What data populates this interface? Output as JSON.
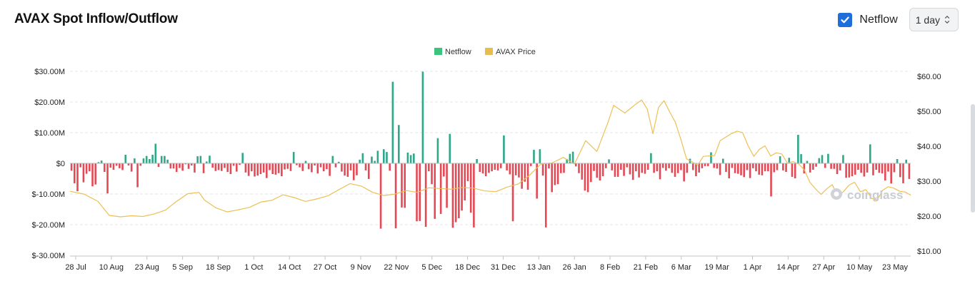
{
  "header": {
    "title": "AVAX Spot Inflow/Outflow",
    "checkbox_label": "Netflow",
    "checkbox_checked": true,
    "interval": "1 day"
  },
  "watermark": "coinglass",
  "colors": {
    "positive": "#2fa889",
    "negative": "#e34a55",
    "price": "#ecc054",
    "accent": "#1e6fd9"
  },
  "chart_data": {
    "type": "bar",
    "grid": true,
    "legend_placement": "top-center",
    "legend": [
      {
        "name": "Netflow",
        "color": "#3cc47c"
      },
      {
        "name": "AVAX Price",
        "color": "#e9bc4f"
      }
    ],
    "x_tick_labels": [
      "28 Jul",
      "10 Aug",
      "23 Aug",
      "5 Sep",
      "18 Sep",
      "1 Oct",
      "14 Oct",
      "27 Oct",
      "9 Nov",
      "22 Nov",
      "5 Dec",
      "18 Dec",
      "31 Dec",
      "13 Jan",
      "26 Jan",
      "8 Feb",
      "21 Feb",
      "6 Mar",
      "19 Mar",
      "1 Apr",
      "14 Apr",
      "27 Apr",
      "10 May",
      "23 May"
    ],
    "y_left": {
      "ticks": [
        "$30.00M",
        "$20.00M",
        "$10.00M",
        "$0",
        "$-10.00M",
        "$-20.00M",
        "$-30.00M"
      ],
      "range": [
        -30,
        30
      ],
      "unit": "M USD"
    },
    "y_right": {
      "ticks": [
        "$60.00",
        "$50.00",
        "$40.00",
        "$30.00",
        "$20.00",
        "$10.00"
      ],
      "range": [
        10,
        60
      ],
      "unit": "USD"
    },
    "series": [
      {
        "name": "Netflow",
        "axis": "left",
        "values": [
          -2.4,
          -6.5,
          -9.1,
          -1.3,
          -6.2,
          -3.4,
          -2.6,
          -7.5,
          -6.9,
          0.4,
          0.9,
          -2.8,
          -9.8,
          -1.4,
          -2.1,
          -0.8,
          -1.6,
          -2.2,
          2.8,
          -0.7,
          -2.7,
          1.6,
          -7.8,
          -0.8,
          1.6,
          2.4,
          1.4,
          2.8,
          6.4,
          -1.2,
          2.4,
          2.4,
          1.2,
          -1.7,
          -1.7,
          -2.8,
          -1.5,
          -2.4,
          -0.3,
          -1.8,
          -0.7,
          -3.0,
          2.3,
          2.4,
          -3.2,
          0.6,
          2.5,
          -1.4,
          -2.5,
          -2.2,
          -2.5,
          -1.5,
          -2.8,
          -3.5,
          -0.8,
          -2.7,
          -0.5,
          3.4,
          -3.0,
          -4.1,
          -2.6,
          -4.3,
          -4.0,
          -3.5,
          -3.0,
          -4.8,
          -2.2,
          -3.5,
          -3.7,
          -3.2,
          -4.2,
          -2.0,
          -1.8,
          -2.5,
          3.7,
          -0.6,
          -1.3,
          -2.5,
          0.8,
          -1.9,
          -2.9,
          -0.7,
          -3.3,
          -1.3,
          -2.6,
          -1.9,
          -4.1,
          2.4,
          -1.3,
          0.5,
          -2.7,
          -4.0,
          -4.4,
          -2.3,
          -5.5,
          -3.9,
          1.2,
          3.3,
          -2.3,
          -5.1,
          2.2,
          0.8,
          4.1,
          -21.3,
          4.6,
          3.7,
          -2.4,
          26.6,
          -21.2,
          12.5,
          -14.4,
          -14.5,
          3.5,
          2.7,
          3.2,
          -18.9,
          -18.8,
          29.9,
          -20.7,
          -2.6,
          -6.8,
          -18.1,
          8.2,
          -16.5,
          -4.3,
          -14.5,
          9.6,
          -21.0,
          -19.2,
          -17.9,
          -15.4,
          -12.1,
          -5.8,
          -16.1,
          -20.9,
          1.4,
          -2.8,
          -3.3,
          -4.2,
          -3.1,
          -2.6,
          -2.1,
          -2.3,
          -1.6,
          9.1,
          -2.3,
          -3.6,
          -18.9,
          -3.9,
          -4.6,
          -8.3,
          -6.0,
          -8.6,
          -0.9,
          4.4,
          -11.5,
          4.6,
          -4.0,
          -20.9,
          -1.7,
          -9.4,
          -7.1,
          -6.8,
          -3.2,
          -3.1,
          1.4,
          3.1,
          3.8,
          -1.0,
          -3.2,
          -5.3,
          -8.9,
          -9.4,
          -6.1,
          -2.5,
          -4.7,
          -5.6,
          -4.2,
          -1.6,
          1.3,
          -2.3,
          -4.4,
          -4.4,
          -2.1,
          -4.1,
          -1.3,
          -3.6,
          -5.4,
          -2.6,
          -4.6,
          -3.1,
          -3.4,
          -2.1,
          3.3,
          -3.1,
          -2.6,
          -5.2,
          -1.5,
          -2.4,
          -1.6,
          -3.1,
          -4.4,
          -3.2,
          -2.2,
          -5.9,
          -3.1,
          1.5,
          -2.2,
          -4.2,
          -3.0,
          -1.6,
          -0.9,
          -0.9,
          3.6,
          -1.5,
          -1.7,
          -3.8,
          1.5,
          -2.8,
          -4.9,
          -1.5,
          -3.2,
          -3.4,
          -3.9,
          -4.5,
          -2.2,
          -4.8,
          -1.6,
          -2.6,
          -3.7,
          -3.9,
          -2.6,
          -2.6,
          -10.8,
          -2.9,
          -2.2,
          2.3,
          -2.3,
          -2.8,
          1.8,
          -4.4,
          -4.9,
          9.3,
          3.0,
          -3.3,
          0.8,
          -3.0,
          -2.1,
          -1.1,
          1.7,
          2.7,
          -1.5,
          3.1,
          -1.8,
          -1.8,
          -3.5,
          -2.3,
          2.7,
          -4.7,
          -4.6,
          -4.2,
          -3.7,
          -2.1,
          -3.1,
          -4.3,
          -3.0,
          6.2,
          -3.9,
          -2.1,
          -3.1,
          -3.3,
          -5.6,
          -2.7,
          -6.6,
          -2.9,
          1.4,
          -4.5,
          -6.5,
          1.2,
          -5.1
        ]
      },
      {
        "name": "AVAX Price",
        "axis": "right",
        "x_range": [
          0,
          300
        ],
        "points": [
          [
            0,
            27.1
          ],
          [
            5,
            26.3
          ],
          [
            10,
            24.2
          ],
          [
            14,
            20.2
          ],
          [
            18,
            19.8
          ],
          [
            22,
            20.1
          ],
          [
            26,
            19.9
          ],
          [
            30,
            20.6
          ],
          [
            34,
            21.7
          ],
          [
            38,
            24.2
          ],
          [
            42,
            26.4
          ],
          [
            46,
            26.8
          ],
          [
            48,
            24.6
          ],
          [
            52,
            22.4
          ],
          [
            56,
            21.2
          ],
          [
            60,
            21.8
          ],
          [
            64,
            22.5
          ],
          [
            68,
            24.0
          ],
          [
            72,
            24.5
          ],
          [
            76,
            26.1
          ],
          [
            80,
            25.3
          ],
          [
            84,
            24.2
          ],
          [
            88,
            24.9
          ],
          [
            92,
            25.8
          ],
          [
            96,
            27.6
          ],
          [
            100,
            29.3
          ],
          [
            104,
            28.6
          ],
          [
            108,
            26.8
          ],
          [
            112,
            25.9
          ],
          [
            116,
            26.3
          ],
          [
            120,
            27.3
          ],
          [
            124,
            26.8
          ],
          [
            128,
            28.1
          ],
          [
            132,
            27.9
          ],
          [
            136,
            27.7
          ],
          [
            140,
            28.2
          ],
          [
            144,
            28.0
          ],
          [
            148,
            27.2
          ],
          [
            152,
            27.0
          ],
          [
            156,
            28.3
          ],
          [
            160,
            29.2
          ],
          [
            164,
            31.7
          ],
          [
            168,
            34.9
          ],
          [
            172,
            35.2
          ],
          [
            176,
            36.8
          ],
          [
            180,
            34.9
          ],
          [
            184,
            41.6
          ],
          [
            188,
            38.5
          ],
          [
            192,
            46.9
          ],
          [
            194,
            51.7
          ],
          [
            198,
            49.5
          ],
          [
            202,
            52.1
          ],
          [
            204,
            53.2
          ],
          [
            206,
            50.6
          ],
          [
            208,
            43.6
          ],
          [
            210,
            51.1
          ],
          [
            212,
            53.0
          ],
          [
            214,
            49.8
          ],
          [
            216,
            46.9
          ],
          [
            218,
            41.9
          ],
          [
            220,
            36.4
          ],
          [
            224,
            34.6
          ],
          [
            226,
            37.1
          ],
          [
            230,
            37.3
          ],
          [
            232,
            41.6
          ],
          [
            236,
            43.6
          ],
          [
            238,
            44.3
          ],
          [
            240,
            43.9
          ],
          [
            242,
            40.1
          ],
          [
            244,
            37.1
          ],
          [
            246,
            39.1
          ],
          [
            248,
            40.1
          ],
          [
            250,
            37.2
          ],
          [
            252,
            38.1
          ],
          [
            254,
            37.8
          ],
          [
            256,
            35.1
          ],
          [
            258,
            35.6
          ],
          [
            260,
            34.9
          ],
          [
            262,
            33.3
          ],
          [
            264,
            29.7
          ],
          [
            266,
            27.8
          ],
          [
            268,
            26.2
          ],
          [
            270,
            27.8
          ],
          [
            272,
            29.0
          ],
          [
            274,
            25.7
          ],
          [
            276,
            27.0
          ],
          [
            278,
            28.9
          ],
          [
            280,
            29.7
          ],
          [
            282,
            27.0
          ],
          [
            284,
            27.6
          ],
          [
            286,
            25.1
          ],
          [
            288,
            24.6
          ],
          [
            290,
            27.4
          ],
          [
            292,
            28.4
          ],
          [
            294,
            28.0
          ],
          [
            296,
            27.1
          ],
          [
            298,
            26.9
          ],
          [
            300,
            26.0
          ]
        ]
      }
    ]
  }
}
